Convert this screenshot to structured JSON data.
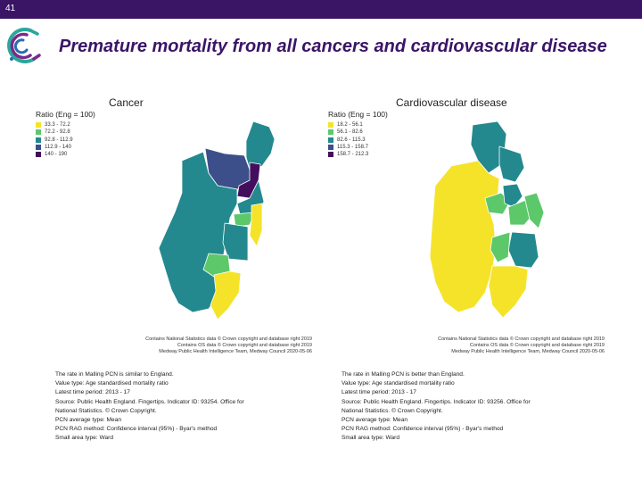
{
  "slide": {
    "number": "41"
  },
  "title": "Premature mortality from all cancers and cardiovascular disease",
  "colors": {
    "brand_purple": "#3a1566",
    "logo_teal": "#2aa89a",
    "logo_purple": "#7a2a8c",
    "logo_blue": "#2b6cb0",
    "viridis_1": "#f5e32a",
    "viridis_2": "#5cc86a",
    "viridis_3": "#23898e",
    "viridis_4": "#3c4f8a",
    "viridis_5": "#440e5e"
  },
  "left_map": {
    "heading": "Cancer",
    "legend_title": "Ratio (Eng = 100)",
    "legend": [
      {
        "label": "33.3 - 72.2",
        "color": "#f5e32a"
      },
      {
        "label": "72.2 - 92.8",
        "color": "#5cc86a"
      },
      {
        "label": "92.8 - 112.9",
        "color": "#23898e"
      },
      {
        "label": "112.9 - 140",
        "color": "#3c4f8a"
      },
      {
        "label": "140 - 190",
        "color": "#440e5e"
      }
    ],
    "credits": [
      "Contains National Statistics data © Crown copyright and database right 2019",
      "Contains OS data © Crown copyright and database right 2019",
      "Medway Public Health Intelligence Team, Medway Council 2020-05-06"
    ],
    "notes": [
      "The rate in Malling PCN is similar to England.",
      "Value type: Age standardised mortality ratio",
      "Latest time period: 2013 - 17",
      "Source: Public Health England. Fingertips. Indicator ID: 93254. Office for",
      "National Statistics. © Crown Copyright.",
      "PCN average type: Mean",
      "PCN RAG method: Confidence interval (95%) - Byar's method",
      "Small area type: Ward"
    ]
  },
  "right_map": {
    "heading": "Cardiovascular disease",
    "legend_title": "Ratio (Eng = 100)",
    "legend": [
      {
        "label": "18.2 - 56.1",
        "color": "#f5e32a"
      },
      {
        "label": "56.1 - 82.6",
        "color": "#5cc86a"
      },
      {
        "label": "82.6 - 115.3",
        "color": "#23898e"
      },
      {
        "label": "115.3 - 158.7",
        "color": "#3c4f8a"
      },
      {
        "label": "158.7 - 212.3",
        "color": "#440e5e"
      }
    ],
    "credits": [
      "Contains National Statistics data © Crown copyright and database right 2019",
      "Contains OS data © Crown copyright and database right 2019",
      "Medway Public Health Intelligence Team, Medway Council 2020-05-06"
    ],
    "notes": [
      "The rate in Malling PCN is better than England.",
      "Value type: Age standardised mortality ratio",
      "Latest time period: 2013 - 17",
      "Source: Public Health England. Fingertips. Indicator ID: 93256. Office for",
      "National Statistics. © Crown Copyright.",
      "PCN average type: Mean",
      "PCN RAG method: Confidence interval (95%) - Byar's method",
      "Small area type: Ward"
    ]
  }
}
